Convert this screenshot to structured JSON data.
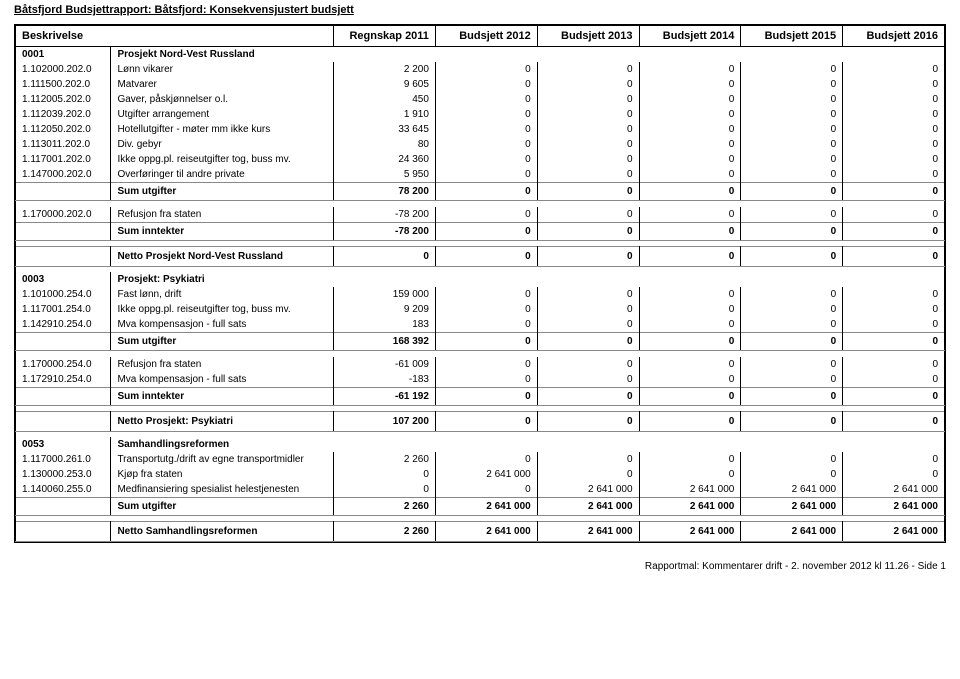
{
  "title": "Båtsfjord Budsjettrapport: Båtsfjord: Konsekvensjustert budsjett",
  "columns": {
    "desc": "Beskrivelse",
    "c1": "Regnskap 2011",
    "c2": "Budsjett 2012",
    "c3": "Budsjett 2013",
    "c4": "Budsjett 2014",
    "c5": "Budsjett 2015",
    "c6": "Budsjett 2016"
  },
  "sections": [
    {
      "code": "0001",
      "name": "Prosjekt Nord-Vest Russland",
      "expense_rows": [
        {
          "code": "1.102000.202.0",
          "desc": "Lønn vikarer",
          "v": [
            "2 200",
            "0",
            "0",
            "0",
            "0",
            "0"
          ]
        },
        {
          "code": "1.111500.202.0",
          "desc": "Matvarer",
          "v": [
            "9 605",
            "0",
            "0",
            "0",
            "0",
            "0"
          ]
        },
        {
          "code": "1.112005.202.0",
          "desc": "Gaver, påskjønnelser o.l.",
          "v": [
            "450",
            "0",
            "0",
            "0",
            "0",
            "0"
          ]
        },
        {
          "code": "1.112039.202.0",
          "desc": "Utgifter arrangement",
          "v": [
            "1 910",
            "0",
            "0",
            "0",
            "0",
            "0"
          ]
        },
        {
          "code": "1.112050.202.0",
          "desc": "Hotellutgifter - møter mm  ikke kurs",
          "v": [
            "33 645",
            "0",
            "0",
            "0",
            "0",
            "0"
          ]
        },
        {
          "code": "1.113011.202.0",
          "desc": "Div. gebyr",
          "v": [
            "80",
            "0",
            "0",
            "0",
            "0",
            "0"
          ]
        },
        {
          "code": "1.117001.202.0",
          "desc": "Ikke oppg.pl. reiseutgifter  tog, buss mv.",
          "v": [
            "24 360",
            "0",
            "0",
            "0",
            "0",
            "0"
          ]
        },
        {
          "code": "1.147000.202.0",
          "desc": "Overføringer til andre  private",
          "v": [
            "5 950",
            "0",
            "0",
            "0",
            "0",
            "0"
          ]
        }
      ],
      "sum_exp": {
        "label": "Sum utgifter",
        "v": [
          "78 200",
          "0",
          "0",
          "0",
          "0",
          "0"
        ]
      },
      "income_rows": [
        {
          "code": "1.170000.202.0",
          "desc": "Refusjon fra staten",
          "v": [
            "-78 200",
            "0",
            "0",
            "0",
            "0",
            "0"
          ]
        }
      ],
      "sum_inc": {
        "label": "Sum inntekter",
        "v": [
          "-78 200",
          "0",
          "0",
          "0",
          "0",
          "0"
        ]
      },
      "net": {
        "label": "Netto Prosjekt Nord-Vest Russland",
        "v": [
          "0",
          "0",
          "0",
          "0",
          "0",
          "0"
        ]
      }
    },
    {
      "code": "0003",
      "name": "Prosjekt: Psykiatri",
      "expense_rows": [
        {
          "code": "1.101000.254.0",
          "desc": "Fast lønn, drift",
          "v": [
            "159 000",
            "0",
            "0",
            "0",
            "0",
            "0"
          ]
        },
        {
          "code": "1.117001.254.0",
          "desc": "Ikke oppg.pl. reiseutgifter  tog, buss mv.",
          "v": [
            "9 209",
            "0",
            "0",
            "0",
            "0",
            "0"
          ]
        },
        {
          "code": "1.142910.254.0",
          "desc": "Mva kompensasjon - full sats",
          "v": [
            "183",
            "0",
            "0",
            "0",
            "0",
            "0"
          ]
        }
      ],
      "sum_exp": {
        "label": "Sum utgifter",
        "v": [
          "168 392",
          "0",
          "0",
          "0",
          "0",
          "0"
        ]
      },
      "income_rows": [
        {
          "code": "1.170000.254.0",
          "desc": "Refusjon fra staten",
          "v": [
            "-61 009",
            "0",
            "0",
            "0",
            "0",
            "0"
          ]
        },
        {
          "code": "1.172910.254.0",
          "desc": "Mva kompensasjon - full sats",
          "v": [
            "-183",
            "0",
            "0",
            "0",
            "0",
            "0"
          ]
        }
      ],
      "sum_inc": {
        "label": "Sum inntekter",
        "v": [
          "-61 192",
          "0",
          "0",
          "0",
          "0",
          "0"
        ]
      },
      "net": {
        "label": "Netto Prosjekt: Psykiatri",
        "v": [
          "107 200",
          "0",
          "0",
          "0",
          "0",
          "0"
        ]
      }
    },
    {
      "code": "0053",
      "name": "Samhandlingsreformen",
      "expense_rows": [
        {
          "code": "1.117000.261.0",
          "desc": "Transportutg./drift av egne transportmidler",
          "v": [
            "2 260",
            "0",
            "0",
            "0",
            "0",
            "0"
          ]
        },
        {
          "code": "1.130000.253.0",
          "desc": "Kjøp fra staten",
          "v": [
            "0",
            "2 641 000",
            "0",
            "0",
            "0",
            "0"
          ]
        },
        {
          "code": "1.140060.255.0",
          "desc": "Medfinansiering spesialist helestjenesten",
          "v": [
            "0",
            "0",
            "2 641 000",
            "2 641 000",
            "2 641 000",
            "2 641 000"
          ]
        }
      ],
      "sum_exp": {
        "label": "Sum utgifter",
        "v": [
          "2 260",
          "2 641 000",
          "2 641 000",
          "2 641 000",
          "2 641 000",
          "2 641 000"
        ]
      },
      "income_rows": [],
      "sum_inc": null,
      "net": {
        "label": "Netto Samhandlingsreformen",
        "v": [
          "2 260",
          "2 641 000",
          "2 641 000",
          "2 641 000",
          "2 641 000",
          "2 641 000"
        ]
      }
    }
  ],
  "footer": "Rapportmal: Kommentarer drift - 2. november 2012 kl 11.26 - Side 1"
}
